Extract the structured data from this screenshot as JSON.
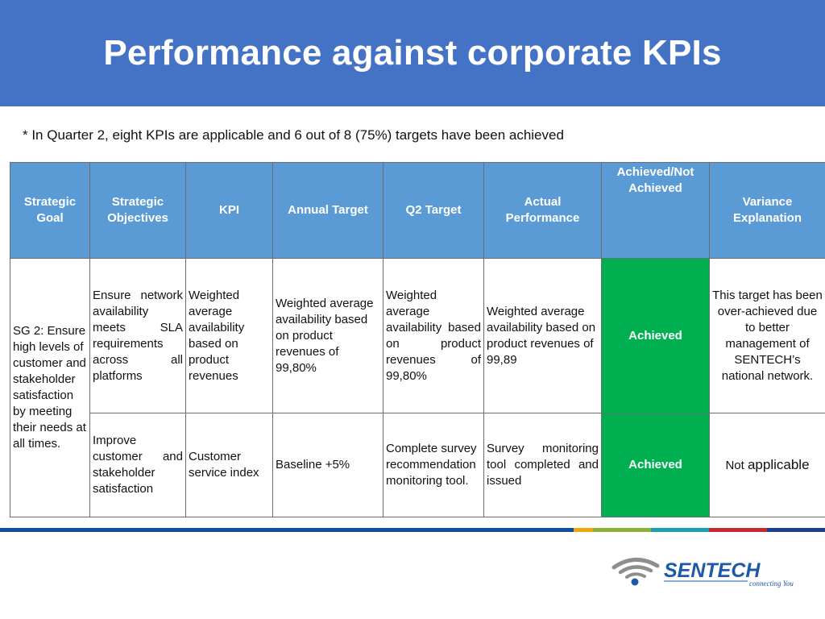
{
  "header": {
    "title": "Performance against corporate KPIs"
  },
  "note": "* In Quarter 2, eight KPIs are applicable and 6 out of 8 (75%) targets have been achieved",
  "table": {
    "columns": [
      "Strategic Goal",
      "Strategic Objectives",
      "KPI",
      "Annual Target",
      "Q2 Target",
      "Actual Performance",
      "Achieved/Not Achieved",
      "Variance Explanation"
    ],
    "goal": "SG 2: Ensure high levels of customer and stakeholder satisfaction by meeting their needs at all times.",
    "rows": [
      {
        "objective": "Ensure network availability meets SLA requirements across all platforms",
        "kpi": "Weighted average availability based on product revenues",
        "annual_target": "Weighted average availability based on product revenues of 99,80%",
        "q2_target": "Weighted average availability based on product revenues of 99,80%",
        "actual": "Weighted average availability based on product revenues of 99,89",
        "status": "Achieved",
        "variance": "This target has been over-achieved due to better management of SENTECH’s national network."
      },
      {
        "objective": "Improve customer and stakeholder satisfaction",
        "kpi": "Customer service index",
        "annual_target": "Baseline +5%",
        "q2_target": "Complete survey recommendation monitoring tool.",
        "actual": "Survey monitoring tool completed and issued",
        "status": "Achieved",
        "variance_prefix": "Not",
        "variance_main": "applicable"
      }
    ]
  },
  "footer": {
    "stripe_colors": [
      "#0d4ea6",
      "#f0a30a",
      "#8cb23a",
      "#1aa0b0",
      "#c8282e",
      "#1c3f94"
    ],
    "logo": {
      "name": "SENTECH",
      "tagline": "connecting You",
      "icon": "wifi-signal-icon"
    }
  },
  "colors": {
    "banner": "#4472c4",
    "header_cells": "#5b9bd5",
    "achieved": "#00b050",
    "logo_blue": "#1c5aa8"
  }
}
